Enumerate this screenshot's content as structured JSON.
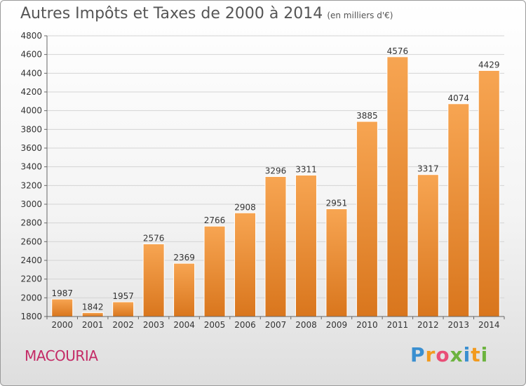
{
  "chart_data": {
    "type": "bar",
    "title": "Autres Impôts et Taxes de 2000 à 2014",
    "subtitle": "(en milliers d'€)",
    "categories": [
      "2000",
      "2001",
      "2002",
      "2003",
      "2004",
      "2005",
      "2006",
      "2007",
      "2008",
      "2009",
      "2010",
      "2011",
      "2012",
      "2013",
      "2014"
    ],
    "values": [
      1987,
      1842,
      1957,
      2576,
      2369,
      2766,
      2908,
      3296,
      3311,
      2951,
      3885,
      4576,
      3317,
      4074,
      4429
    ],
    "ylim": [
      1800,
      4800
    ],
    "yticks": [
      1800,
      2000,
      2200,
      2400,
      2600,
      2800,
      3000,
      3200,
      3400,
      3600,
      3800,
      4000,
      4200,
      4400,
      4600,
      4800
    ],
    "grid": true,
    "bar_color_top": "#f7a552",
    "bar_color_bottom": "#d9761d"
  },
  "footer": {
    "place": "MACOURIA",
    "brand": "Proxiti"
  }
}
